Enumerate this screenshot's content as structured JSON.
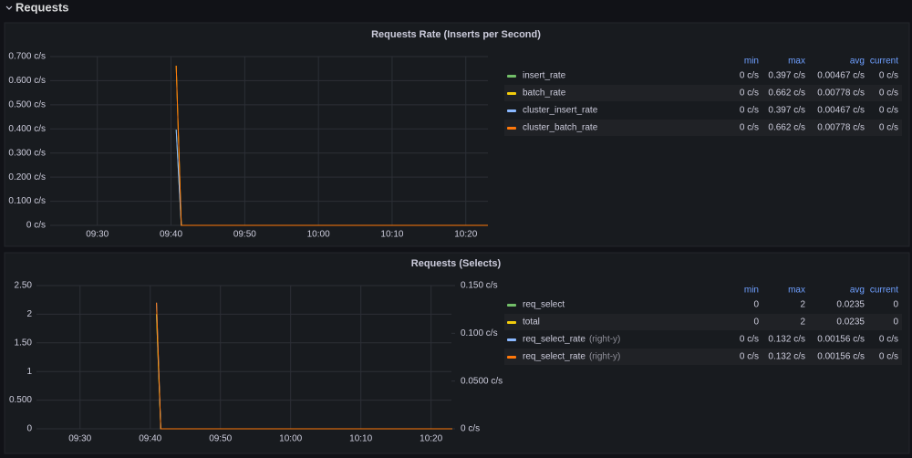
{
  "header": {
    "title": "Requests"
  },
  "chart_data": [
    {
      "type": "line",
      "title": "Requests Rate (Inserts per Second)",
      "x": [
        580.7,
        581.4,
        623
      ],
      "xlim": [
        563.6,
        623
      ],
      "xticks": [
        {
          "value": 570,
          "label": "09:30"
        },
        {
          "value": 580,
          "label": "09:40"
        },
        {
          "value": 590,
          "label": "09:50"
        },
        {
          "value": 600,
          "label": "10:00"
        },
        {
          "value": 610,
          "label": "10:10"
        },
        {
          "value": 620,
          "label": "10:20"
        }
      ],
      "ylim": [
        0,
        0.7
      ],
      "yticks": [
        {
          "value": 0,
          "label": "0 c/s"
        },
        {
          "value": 0.1,
          "label": "0.100 c/s"
        },
        {
          "value": 0.2,
          "label": "0.200 c/s"
        },
        {
          "value": 0.3,
          "label": "0.300 c/s"
        },
        {
          "value": 0.4,
          "label": "0.400 c/s"
        },
        {
          "value": 0.5,
          "label": "0.500 c/s"
        },
        {
          "value": 0.6,
          "label": "0.600 c/s"
        },
        {
          "value": 0.7,
          "label": "0.700 c/s"
        }
      ],
      "grid": true,
      "legend_columns": [
        "min",
        "max",
        "avg",
        "current"
      ],
      "series": [
        {
          "name": "insert_rate",
          "color": "#73bf69",
          "values": [
            0.397,
            0,
            0
          ],
          "stats": [
            "0 c/s",
            "0.397 c/s",
            "0.00467 c/s",
            "0 c/s"
          ]
        },
        {
          "name": "batch_rate",
          "color": "#f2cc0c",
          "values": [
            0.662,
            0,
            0
          ],
          "stats": [
            "0 c/s",
            "0.662 c/s",
            "0.00778 c/s",
            "0 c/s"
          ]
        },
        {
          "name": "cluster_insert_rate",
          "color": "#8ab8ff",
          "values": [
            0.397,
            0,
            0
          ],
          "stats": [
            "0 c/s",
            "0.397 c/s",
            "0.00467 c/s",
            "0 c/s"
          ]
        },
        {
          "name": "cluster_batch_rate",
          "color": "#ff780a",
          "values": [
            0.662,
            0,
            0
          ],
          "stats": [
            "0 c/s",
            "0.662 c/s",
            "0.00778 c/s",
            "0 c/s"
          ]
        }
      ]
    },
    {
      "type": "line",
      "title": "Requests (Selects)",
      "x": [
        580.9,
        581.5,
        623
      ],
      "xlim": [
        563.8,
        622.9
      ],
      "xticks": [
        {
          "value": 570,
          "label": "09:30"
        },
        {
          "value": 580,
          "label": "09:40"
        },
        {
          "value": 590,
          "label": "09:50"
        },
        {
          "value": 600,
          "label": "10:00"
        },
        {
          "value": 610,
          "label": "10:10"
        },
        {
          "value": 620,
          "label": "10:20"
        }
      ],
      "ylim": [
        0,
        2.5
      ],
      "yticks": [
        0,
        {
          "value": 0.5,
          "label": "0.500"
        },
        1,
        {
          "value": 1.5,
          "label": "1.50"
        },
        2,
        {
          "value": 2.5,
          "label": "2.50"
        }
      ],
      "y2lim": [
        0,
        0.15
      ],
      "y2ticks": [
        {
          "value": 0,
          "label": "0 c/s"
        },
        {
          "value": 0.05,
          "label": "0.0500 c/s"
        },
        {
          "value": 0.1,
          "label": "0.100 c/s"
        },
        {
          "value": 0.15,
          "label": "0.150 c/s"
        }
      ],
      "grid": true,
      "legend_columns": [
        "min",
        "max",
        "avg",
        "current"
      ],
      "series": [
        {
          "name": "req_select",
          "color": "#73bf69",
          "values": [
            2,
            0,
            0
          ],
          "stats": [
            "0",
            "2",
            "0.0235",
            "0"
          ]
        },
        {
          "name": "total",
          "color": "#f2cc0c",
          "values": [
            2,
            0,
            0
          ],
          "stats": [
            "0",
            "2",
            "0.0235",
            "0"
          ]
        },
        {
          "name": "req_select_rate",
          "axis": "y2",
          "axis_note": "(right-y)",
          "color": "#8ab8ff",
          "values": [
            0.132,
            0,
            0
          ],
          "stats": [
            "0 c/s",
            "0.132 c/s",
            "0.00156 c/s",
            "0 c/s"
          ]
        },
        {
          "name": "req_select_rate",
          "axis": "y2",
          "axis_note": "(right-y)",
          "color": "#ff780a",
          "values": [
            0.132,
            0,
            0
          ],
          "stats": [
            "0 c/s",
            "0.132 c/s",
            "0.00156 c/s",
            "0 c/s"
          ]
        }
      ]
    }
  ]
}
